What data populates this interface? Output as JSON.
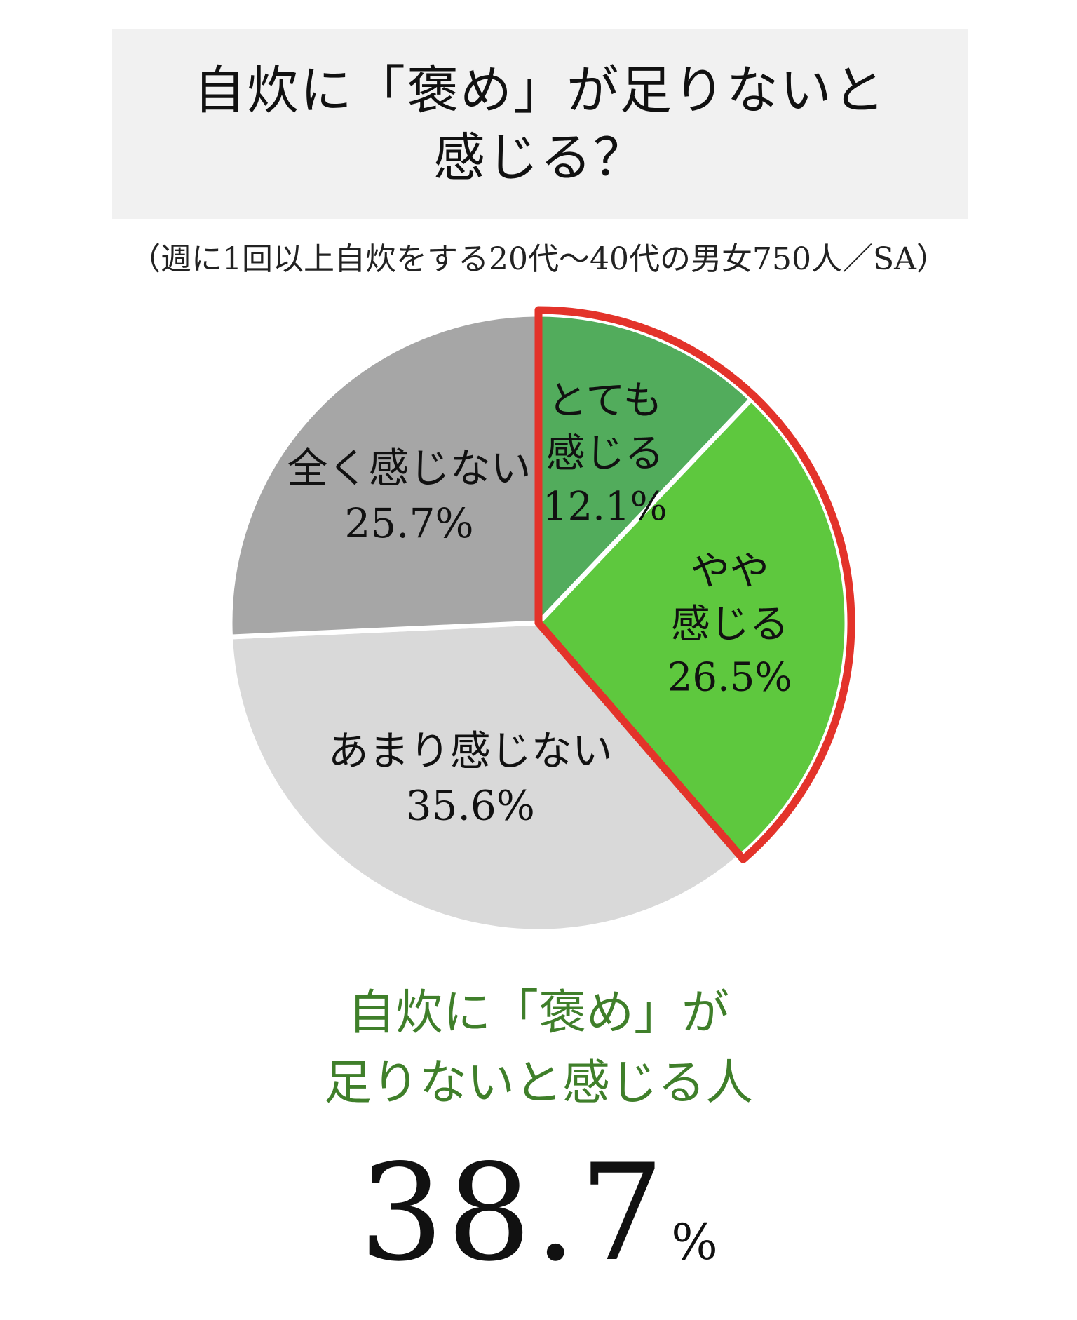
{
  "header": {
    "title_line1": "自炊に「褒め」が足りないと",
    "title_line2": "感じる？",
    "subtitle": "（週に1回以上自炊をする20代〜40代の男女750人／SA）"
  },
  "chart_data": {
    "type": "pie",
    "start": "12 o'clock",
    "direction": "clockwise",
    "slices": [
      {
        "label_lines": [
          "とても",
          "感じる"
        ],
        "pct_text": "12.1%",
        "value": 12.1,
        "color": "#52ac5c"
      },
      {
        "label_lines": [
          "やや",
          "感じる"
        ],
        "pct_text": "26.5%",
        "value": 26.5,
        "color": "#5ec83e"
      },
      {
        "label_lines": [
          "あまり感じない"
        ],
        "pct_text": "35.6%",
        "value": 35.6,
        "color": "#d9d9d9"
      },
      {
        "label_lines": [
          "全く感じない"
        ],
        "pct_text": "25.7%",
        "value": 25.7,
        "color": "#a6a6a6"
      }
    ],
    "highlight": {
      "slices": [
        0,
        1
      ],
      "outline_color": "#e3332a"
    }
  },
  "summary": {
    "line1": "自炊に「褒め」が",
    "line2": "足りないと感じる人",
    "value": "38.7",
    "unit": "%",
    "color": "#3f7f2a"
  }
}
